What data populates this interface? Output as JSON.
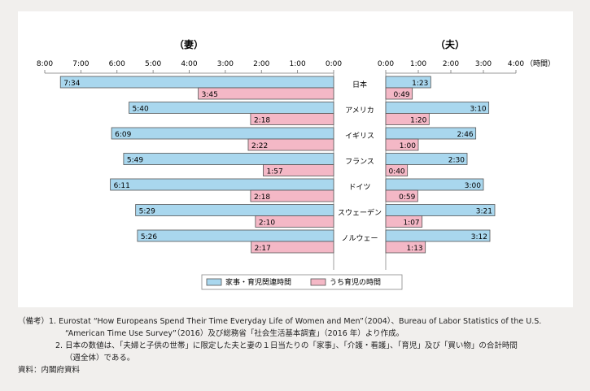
{
  "chart_data": {
    "type": "bar",
    "orientation": "horizontal",
    "categories": [
      "日本",
      "アメリカ",
      "イギリス",
      "フランス",
      "ドイツ",
      "スウェーデン",
      "ノルウェー"
    ],
    "panels": [
      {
        "title": "（妻）",
        "direction": "leftward",
        "ticks": [
          "8:00",
          "7:00",
          "6:00",
          "5:00",
          "4:00",
          "3:00",
          "2:00",
          "1:00",
          "0:00"
        ],
        "xlim": [
          0,
          480
        ],
        "series": [
          {
            "name": "家事・育児関連時間",
            "labels": [
              "7:34",
              "5:40",
              "6:09",
              "5:49",
              "6:11",
              "5:29",
              "5:26"
            ],
            "values": [
              454,
              340,
              369,
              349,
              371,
              329,
              326
            ]
          },
          {
            "name": "うち育児の時間",
            "labels": [
              "3:45",
              "2:18",
              "2:22",
              "1:57",
              "2:18",
              "2:10",
              "2:17"
            ],
            "values": [
              225,
              138,
              142,
              117,
              138,
              130,
              137
            ]
          }
        ]
      },
      {
        "title": "（夫）",
        "direction": "rightward",
        "ticks": [
          "0:00",
          "1:00",
          "2:00",
          "3:00",
          "4:00"
        ],
        "unit": "（時間）",
        "xlim": [
          0,
          240
        ],
        "series": [
          {
            "name": "家事・育児関連時間",
            "labels": [
              "1:23",
              "3:10",
              "2:46",
              "2:30",
              "3:00",
              "3:21",
              "3:12"
            ],
            "values": [
              83,
              190,
              166,
              150,
              180,
              201,
              192
            ]
          },
          {
            "name": "うち育児の時間",
            "labels": [
              "0:49",
              "1:20",
              "1:00",
              "0:40",
              "0:59",
              "1:07",
              "1:13"
            ],
            "values": [
              49,
              80,
              60,
              40,
              59,
              67,
              73
            ]
          }
        ]
      }
    ],
    "legend": [
      "家事・育児関連時間",
      "うち育児の時間"
    ],
    "legend_placement": "bottom-center",
    "colors": {
      "housework": "#a9d7ee",
      "childcare": "#f4b8c6",
      "stroke": "#555555"
    }
  },
  "notes": {
    "line1": "（備考）1.  Eurostat “How Europeans Spend Their Time Everyday Life of Women and Men”（2004）、Bureau of Labor Statistics of the U.S.",
    "line2": "“American Time Use Survey”（2016）及び総務省「社会生活基本調査」（2016 年）より作成。",
    "line3": "2.  日本の数値は、「夫婦と子供の世帯」に限定した夫と妻の１日当たりの「家事」、「介護・看護」、「育児」及び「買い物」の合計時間",
    "line4": "（週全体）である。",
    "source": "資料：内閣府資料"
  }
}
